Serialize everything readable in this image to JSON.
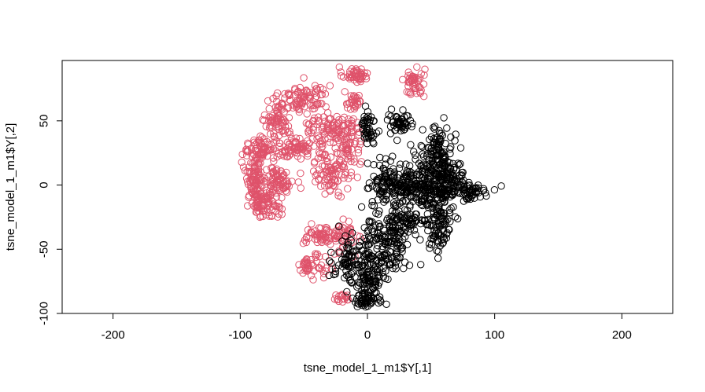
{
  "chart_data": {
    "type": "scatter",
    "title": "",
    "xlabel": "tsne_model_1_m1$Y[,1]",
    "ylabel": "tsne_model_1_m1$Y[,2]",
    "xlim": [
      -240,
      240
    ],
    "ylim": [
      -100,
      97
    ],
    "x_ticks": [
      -200,
      -100,
      0,
      100,
      200
    ],
    "x_tick_labels": [
      "-200",
      "-100",
      "0",
      "100",
      "200"
    ],
    "y_ticks": [
      -100,
      -50,
      0,
      50
    ],
    "y_tick_labels": [
      "-100",
      "-50",
      "0",
      "50"
    ],
    "grid": false,
    "marker": "open-circle",
    "series": [
      {
        "color": "#df536b",
        "clusters": [
          {
            "cx": -10,
            "cy": 86,
            "sx": 5,
            "sy": 3,
            "n": 50
          },
          {
            "cx": 37,
            "cy": 80,
            "sx": 4,
            "sy": 6,
            "n": 50
          },
          {
            "cx": -50,
            "cy": 68,
            "sx": 10,
            "sy": 6,
            "n": 90
          },
          {
            "cx": -70,
            "cy": 50,
            "sx": 5,
            "sy": 8,
            "n": 70
          },
          {
            "cx": -82,
            "cy": 28,
            "sx": 5,
            "sy": 6,
            "n": 60
          },
          {
            "cx": -57,
            "cy": 29,
            "sx": 8,
            "sy": 4,
            "n": 70
          },
          {
            "cx": -88,
            "cy": 5,
            "sx": 4,
            "sy": 12,
            "n": 110
          },
          {
            "cx": -70,
            "cy": 3,
            "sx": 6,
            "sy": 6,
            "n": 80
          },
          {
            "cx": -80,
            "cy": -15,
            "sx": 6,
            "sy": 5,
            "n": 70
          },
          {
            "cx": -30,
            "cy": 45,
            "sx": 10,
            "sy": 5,
            "n": 70
          },
          {
            "cx": -30,
            "cy": 15,
            "sx": 6,
            "sy": 12,
            "n": 90
          },
          {
            "cx": -15,
            "cy": 30,
            "sx": 6,
            "sy": 14,
            "n": 80
          },
          {
            "cx": -10,
            "cy": 65,
            "sx": 3,
            "sy": 3,
            "n": 25
          },
          {
            "cx": -35,
            "cy": -40,
            "sx": 7,
            "sy": 4,
            "n": 60
          },
          {
            "cx": -45,
            "cy": -63,
            "sx": 6,
            "sy": 4,
            "n": 50
          },
          {
            "cx": -20,
            "cy": -88,
            "sx": 4,
            "sy": 2,
            "n": 20
          },
          {
            "cx": -15,
            "cy": -40,
            "sx": 5,
            "sy": 6,
            "n": 40
          }
        ]
      },
      {
        "color": "#000000",
        "clusters": [
          {
            "cx": 40,
            "cy": 0,
            "sx": 18,
            "sy": 10,
            "n": 280
          },
          {
            "cx": 60,
            "cy": 5,
            "sx": 8,
            "sy": 8,
            "n": 100
          },
          {
            "cx": 55,
            "cy": 25,
            "sx": 6,
            "sy": 10,
            "n": 100
          },
          {
            "cx": 80,
            "cy": -5,
            "sx": 8,
            "sy": 3,
            "n": 60
          },
          {
            "cx": 55,
            "cy": -30,
            "sx": 6,
            "sy": 12,
            "n": 100
          },
          {
            "cx": 25,
            "cy": 48,
            "sx": 5,
            "sy": 6,
            "n": 50
          },
          {
            "cx": 0,
            "cy": 45,
            "sx": 3,
            "sy": 8,
            "n": 45
          },
          {
            "cx": 30,
            "cy": -30,
            "sx": 8,
            "sy": 6,
            "n": 70
          },
          {
            "cx": 10,
            "cy": -48,
            "sx": 12,
            "sy": 12,
            "n": 170
          },
          {
            "cx": 2,
            "cy": -75,
            "sx": 6,
            "sy": 8,
            "n": 90
          },
          {
            "cx": -3,
            "cy": -90,
            "sx": 5,
            "sy": 3,
            "n": 40
          },
          {
            "cx": -15,
            "cy": -60,
            "sx": 6,
            "sy": 8,
            "n": 60
          },
          {
            "cx": 20,
            "cy": 0,
            "sx": 8,
            "sy": 6,
            "n": 60
          }
        ]
      }
    ]
  }
}
